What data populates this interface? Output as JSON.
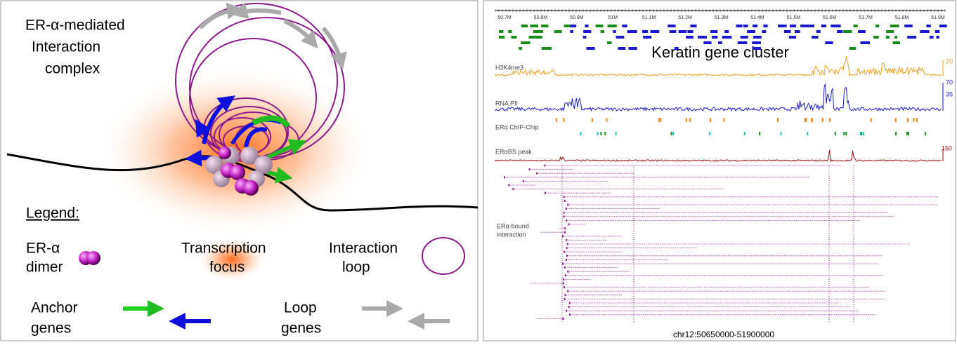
{
  "left_panel": {
    "title_lines": [
      "ER-α-mediated",
      "Interaction",
      "complex"
    ],
    "legend_heading": "Legend:",
    "legend": {
      "er_dimer": [
        "ER-α",
        "dimer"
      ],
      "focus": [
        "Transcription",
        "focus"
      ],
      "loop": [
        "Interaction",
        "loop"
      ],
      "anchor_genes": [
        "Anchor",
        "genes"
      ],
      "loop_genes": [
        "Loop",
        "genes"
      ]
    }
  },
  "right_panel": {
    "axis_ticks": [
      "50.7M",
      "50.8M",
      "50.9M",
      "51M",
      "51.1M",
      "51.2M",
      "51.3M",
      "51.4M",
      "51.5M",
      "51.6M",
      "51.7M",
      "51.8M",
      "51.9M"
    ],
    "cluster_label": "Keratin gene cluster",
    "tracks": {
      "h3k4me3": "H3K4me3",
      "rnapii": "RNA PII",
      "chip": "ERα ChIP-Chip",
      "bs": "ERαBS peak",
      "interaction": [
        "ERα-bound",
        "interaction"
      ]
    },
    "scale_labels": {
      "h3k4me3": "20",
      "rnapii_top": "70",
      "rnapii_mid": "35",
      "bs": "150"
    },
    "coordinates": "chr12:50650000-51900000"
  }
}
